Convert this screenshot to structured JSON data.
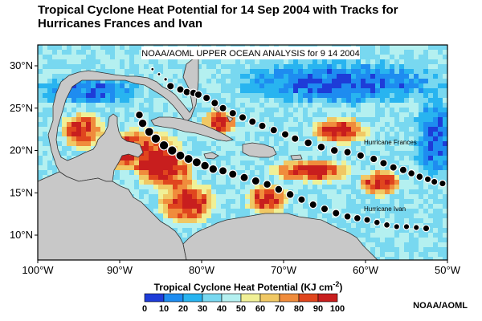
{
  "title_line1": "Tropical Cyclone Heat Potential for 14 Sep 2004 with Tracks for",
  "title_line2": "Hurricanes Frances and Ivan",
  "analysis_label": "NOAA/AOML UPPER OCEAN ANALYSIS for 9 14 2004",
  "credit": "NOAA/AOML",
  "lat_ticks": [
    "30°N",
    "25°N",
    "20°N",
    "15°N",
    "10°N"
  ],
  "lon_ticks": [
    "100°W",
    "90°W",
    "80°W",
    "70°W",
    "60°W",
    "50°W"
  ],
  "colorbar": {
    "title_text": "Tropical Cyclone Heat Potential (KJ cm",
    "title_sup": "-2",
    "title_close": ")",
    "ticks": [
      "0",
      "10",
      "20",
      "30",
      "40",
      "50",
      "60",
      "70",
      "80",
      "90",
      "100"
    ],
    "colors": [
      "#1e3cd8",
      "#1e8cf0",
      "#28b4f0",
      "#78d8f0",
      "#b4f0f0",
      "#f0f096",
      "#f0c864",
      "#f08c3c",
      "#e0461e",
      "#c81e1e"
    ]
  },
  "colors": {
    "land": "#c8c8c8",
    "coast": "#333333",
    "track": "#000000",
    "track_halo": "#ffffff"
  },
  "tracks": [
    {
      "name": "Hurricane Frances",
      "points": [
        [
          -86.0,
          29.6
        ],
        [
          -85.2,
          29.0
        ],
        [
          -84.4,
          28.4
        ],
        [
          -83.8,
          27.6
        ],
        [
          -82.6,
          27.2
        ],
        [
          -81.8,
          26.9
        ],
        [
          -81.0,
          26.8
        ],
        [
          -80.4,
          26.6
        ],
        [
          -79.4,
          26.2
        ],
        [
          -78.4,
          25.6
        ],
        [
          -77.4,
          25.0
        ],
        [
          -76.2,
          24.4
        ],
        [
          -75.0,
          23.9
        ],
        [
          -73.8,
          23.4
        ],
        [
          -72.6,
          22.9
        ],
        [
          -71.2,
          22.4
        ],
        [
          -69.8,
          21.9
        ],
        [
          -68.6,
          21.4
        ],
        [
          -67.0,
          20.9
        ],
        [
          -65.4,
          20.4
        ],
        [
          -63.8,
          20.0
        ],
        [
          -62.2,
          19.8
        ],
        [
          -60.6,
          19.4
        ],
        [
          -59.0,
          19.0
        ],
        [
          -57.8,
          18.5
        ],
        [
          -56.6,
          18.0
        ],
        [
          -55.4,
          17.7
        ],
        [
          -54.4,
          17.3
        ],
        [
          -53.4,
          16.9
        ],
        [
          -52.4,
          16.6
        ],
        [
          -51.6,
          16.3
        ],
        [
          -50.6,
          16.1
        ]
      ],
      "sizes": [
        0.9,
        0.9,
        1,
        1,
        1,
        1,
        1,
        1,
        1,
        1,
        1,
        1,
        1,
        1,
        1,
        1,
        1,
        1,
        1.05,
        1.05,
        1.05,
        1,
        1,
        1,
        1,
        1,
        1,
        0.95,
        0.95,
        0.9,
        0.9,
        0.9
      ]
    },
    {
      "name": "Hurricane Ivan",
      "points": [
        [
          -87.6,
          24.2
        ],
        [
          -87.2,
          23.2
        ],
        [
          -86.4,
          22.2
        ],
        [
          -85.6,
          21.4
        ],
        [
          -84.6,
          20.6
        ],
        [
          -83.6,
          20.0
        ],
        [
          -82.6,
          19.4
        ],
        [
          -81.6,
          19.0
        ],
        [
          -80.6,
          18.6
        ],
        [
          -79.6,
          18.2
        ],
        [
          -78.6,
          17.8
        ],
        [
          -77.4,
          17.6
        ],
        [
          -76.2,
          17.2
        ],
        [
          -74.8,
          16.8
        ],
        [
          -73.4,
          16.4
        ],
        [
          -72.0,
          16.0
        ],
        [
          -70.6,
          15.4
        ],
        [
          -69.2,
          14.8
        ],
        [
          -67.8,
          14.2
        ],
        [
          -66.4,
          13.6
        ],
        [
          -65.0,
          13.1
        ],
        [
          -63.6,
          12.6
        ],
        [
          -62.2,
          12.2
        ],
        [
          -61.0,
          12.0
        ],
        [
          -59.8,
          11.8
        ],
        [
          -58.6,
          11.5
        ],
        [
          -57.4,
          11.2
        ],
        [
          -56.2,
          11.0
        ],
        [
          -55.0,
          11.0
        ],
        [
          -53.8,
          10.9
        ],
        [
          -52.6,
          10.8
        ]
      ],
      "sizes": [
        1.05,
        1.15,
        1.2,
        1.25,
        1.25,
        1.25,
        1.2,
        1.2,
        1.2,
        1.15,
        1.15,
        1.1,
        1.1,
        1.1,
        1.1,
        1.05,
        1.05,
        1.05,
        1.0,
        1.0,
        1.0,
        1.0,
        0.95,
        0.95,
        0.9,
        0.85,
        0.85,
        0.8,
        0.8,
        0.8,
        0.9
      ]
    }
  ]
}
